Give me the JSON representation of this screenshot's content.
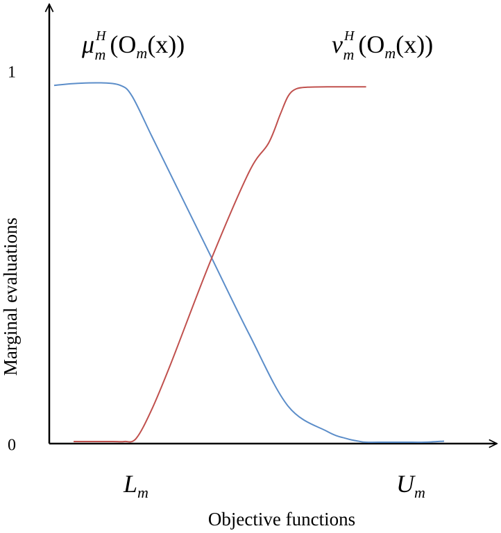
{
  "chart_data": {
    "type": "line",
    "title": "",
    "xlabel": "Objective functions",
    "ylabel": "Marginal evaluations",
    "ylim": [
      0,
      1
    ],
    "y_ticks": [
      "0",
      "1"
    ],
    "x_ticks": [
      {
        "base": "L",
        "sub": "m",
        "x": 0.2
      },
      {
        "base": "U",
        "sub": "m",
        "x": 0.9
      }
    ],
    "grid": false,
    "series": [
      {
        "name": "μ_m^H (O_m(x))",
        "label_parts": {
          "base": "μ",
          "sub": "m",
          "sup": "H",
          "arg": "(O",
          "arg_sub": "m",
          "arg_tail": "(x))"
        },
        "color": "#5b8dc9",
        "x": [
          0.0,
          0.05,
          0.12,
          0.17,
          0.2,
          0.25,
          0.3,
          0.4,
          0.5,
          0.6,
          0.7,
          0.75,
          0.78,
          0.8,
          0.85,
          0.9,
          0.95,
          1.0
        ],
        "y": [
          0.99,
          0.995,
          0.997,
          0.99,
          0.96,
          0.85,
          0.74,
          0.52,
          0.3,
          0.1,
          0.03,
          0.01,
          0.003,
          0.0,
          0.0,
          0.0,
          0.0,
          0.003
        ]
      },
      {
        "name": "ν_m^H (O_m(x))",
        "label_parts": {
          "base": "ν",
          "sub": "m",
          "sup": "H",
          "arg": "(O",
          "arg_sub": "m",
          "arg_tail": "(x))"
        },
        "color": "#c0504d",
        "x": [
          0.05,
          0.1,
          0.15,
          0.18,
          0.21,
          0.25,
          0.3,
          0.4,
          0.5,
          0.55,
          0.58,
          0.6,
          0.62,
          0.65,
          0.7,
          0.8
        ],
        "y": [
          0.002,
          0.002,
          0.002,
          0.002,
          0.01,
          0.09,
          0.22,
          0.5,
          0.75,
          0.83,
          0.91,
          0.96,
          0.98,
          0.985,
          0.986,
          0.986
        ]
      }
    ]
  }
}
